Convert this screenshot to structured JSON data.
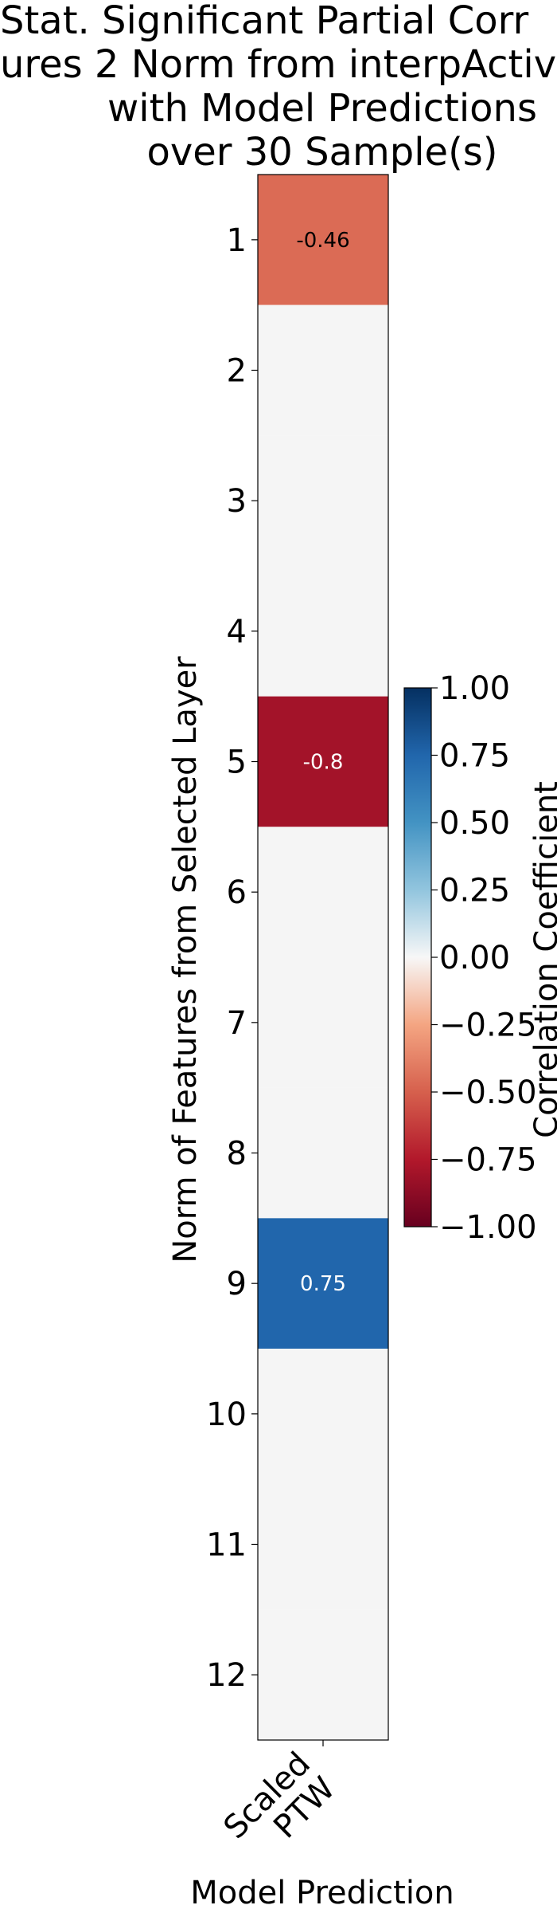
{
  "chart_data": {
    "type": "heatmap",
    "title_lines": [
      "Stat. Significant Partial Corr",
      "ures 2 Norm from interpActiv",
      "with Model Predictions",
      "over 30  Sample(s)"
    ],
    "xlabel": "Model Prediction",
    "ylabel": "Norm of Features from Selected Layer",
    "x_categories": [
      "Scaled PTW"
    ],
    "x_tick_lines": [
      "Scaled",
      "PTW"
    ],
    "y_categories": [
      "1",
      "2",
      "3",
      "4",
      "5",
      "6",
      "7",
      "8",
      "9",
      "10",
      "11",
      "12"
    ],
    "values": [
      [
        -0.46
      ],
      [
        null
      ],
      [
        null
      ],
      [
        null
      ],
      [
        -0.8
      ],
      [
        null
      ],
      [
        null
      ],
      [
        null
      ],
      [
        0.75
      ],
      [
        null
      ],
      [
        null
      ],
      [
        null
      ]
    ],
    "cell_labels": [
      [
        "-0.46"
      ],
      [
        ""
      ],
      [
        ""
      ],
      [
        ""
      ],
      [
        "-0.8"
      ],
      [
        ""
      ],
      [
        ""
      ],
      [
        ""
      ],
      [
        "0.75"
      ],
      [
        ""
      ],
      [
        ""
      ],
      [
        ""
      ]
    ],
    "colormap": "RdBu",
    "empty_cell_color": "#f5f5f5",
    "colorbar": {
      "label": "Correlation Coefficient",
      "range": [
        -1.0,
        1.0
      ],
      "ticks": [
        1.0,
        0.75,
        0.5,
        0.25,
        0.0,
        -0.25,
        -0.5,
        -0.75,
        -1.0
      ],
      "tick_labels": [
        "1.00",
        "0.75",
        "0.50",
        "0.25",
        "0.00",
        "−0.25",
        "−0.50",
        "−0.75",
        "−1.00"
      ]
    }
  }
}
